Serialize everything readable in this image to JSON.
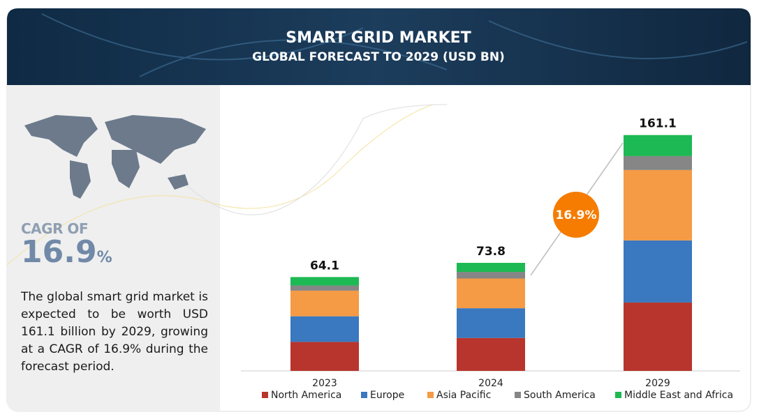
{
  "header": {
    "title": "SMART GRID MARKET",
    "subtitle": "GLOBAL FORECAST TO 2029 (USD BN)"
  },
  "side": {
    "cagr_label": "CAGR OF",
    "cagr_value": "16.9",
    "cagr_unit": "%",
    "description": "The global smart grid market is expected to be worth USD 161.1 billion by 2029, growing at a CAGR of 16.9% during the forecast period."
  },
  "chart_data": {
    "type": "stacked_bar",
    "categories": [
      "2023",
      "2024",
      "2029"
    ],
    "totals": [
      64.1,
      73.8,
      161.1
    ],
    "ylim": [
      0,
      170
    ],
    "badge": "16.9%",
    "series": [
      {
        "name": "North America",
        "color": "#b8352d",
        "values": [
          19.8,
          22.5,
          46.7
        ]
      },
      {
        "name": "Europe",
        "color": "#3a78c0",
        "values": [
          17.5,
          20.3,
          42.4
        ]
      },
      {
        "name": "Asia Pacific",
        "color": "#f59a45",
        "values": [
          17.5,
          20.3,
          48.1
        ]
      },
      {
        "name": "South America",
        "color": "#868686",
        "values": [
          3.5,
          4.5,
          9.5
        ]
      },
      {
        "name": "Middle East and Africa",
        "color": "#1db954",
        "values": [
          5.8,
          6.2,
          14.4
        ]
      }
    ]
  }
}
